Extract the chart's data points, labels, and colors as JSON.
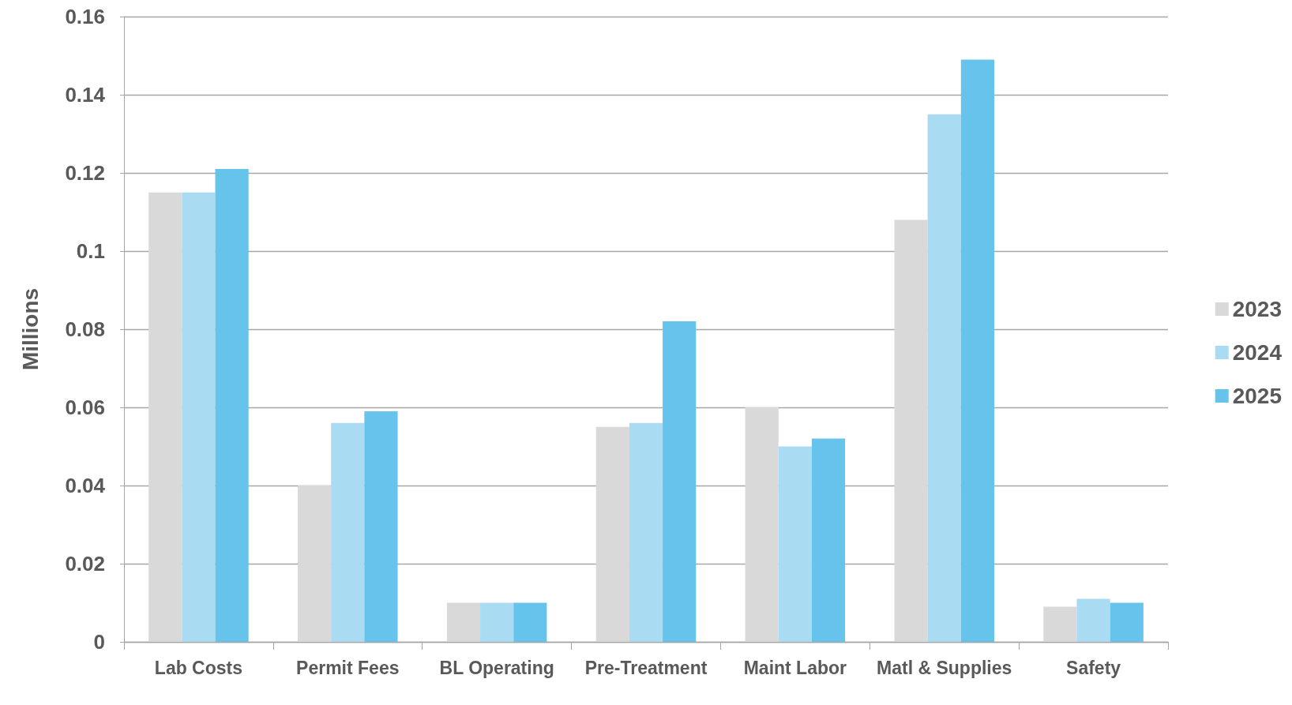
{
  "chart_data": {
    "type": "bar",
    "ylabel": "Millions",
    "categories": [
      "Lab Costs",
      "Permit Fees",
      "BL Operating",
      "Pre-Treatment",
      "Maint Labor",
      "Matl & Supplies",
      "Safety"
    ],
    "series": [
      {
        "name": "2023",
        "color": "#d9d9d9",
        "values": [
          0.115,
          0.04,
          0.01,
          0.055,
          0.06,
          0.108,
          0.009
        ]
      },
      {
        "name": "2024",
        "color": "#a9dcf3",
        "values": [
          0.115,
          0.056,
          0.01,
          0.056,
          0.05,
          0.135,
          0.011
        ]
      },
      {
        "name": "2025",
        "color": "#66c3eb",
        "values": [
          0.121,
          0.059,
          0.01,
          0.082,
          0.052,
          0.149,
          0.01
        ]
      }
    ],
    "ylim": [
      0,
      0.16
    ],
    "yticks": [
      0,
      0.02,
      0.04,
      0.06,
      0.08,
      0.1,
      0.12,
      0.14,
      0.16
    ],
    "grid": "y",
    "legend": "right"
  }
}
